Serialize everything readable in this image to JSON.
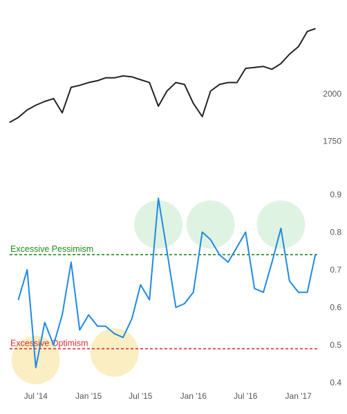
{
  "chart_data": [
    {
      "type": "line",
      "panel": "top",
      "x_dates": [
        "2014-04",
        "2014-05",
        "2014-06",
        "2014-07",
        "2014-08",
        "2014-09",
        "2014-10",
        "2014-11",
        "2014-12",
        "2015-01",
        "2015-02",
        "2015-03",
        "2015-04",
        "2015-05",
        "2015-06",
        "2015-07",
        "2015-08",
        "2015-09",
        "2015-10",
        "2015-11",
        "2015-12",
        "2016-01",
        "2016-02",
        "2016-03",
        "2016-04",
        "2016-05",
        "2016-06",
        "2016-07",
        "2016-08",
        "2016-09",
        "2016-10",
        "2016-11",
        "2016-12",
        "2017-01",
        "2017-02",
        "2017-03"
      ],
      "values": [
        1850,
        1875,
        1915,
        1940,
        1960,
        1975,
        1900,
        2035,
        2045,
        2060,
        2070,
        2085,
        2085,
        2095,
        2090,
        2075,
        2060,
        1935,
        2015,
        2060,
        2050,
        1950,
        1880,
        2015,
        2050,
        2060,
        2060,
        2135,
        2140,
        2145,
        2130,
        2160,
        2210,
        2250,
        2330,
        2345
      ],
      "yticks": [
        1750,
        2000
      ],
      "ylim": [
        1650,
        2460
      ],
      "color": "#222222"
    },
    {
      "type": "line",
      "panel": "bottom",
      "x_dates": [
        "2014-05",
        "2014-06",
        "2014-07",
        "2014-08",
        "2014-09",
        "2014-10",
        "2014-11",
        "2014-12",
        "2015-01",
        "2015-02",
        "2015-03",
        "2015-04",
        "2015-05",
        "2015-06",
        "2015-07",
        "2015-08",
        "2015-09",
        "2015-10",
        "2015-11",
        "2015-12",
        "2016-01",
        "2016-02",
        "2016-03",
        "2016-04",
        "2016-05",
        "2016-06",
        "2016-07",
        "2016-08",
        "2016-09",
        "2016-10",
        "2016-11",
        "2016-12",
        "2017-01",
        "2017-02",
        "2017-03"
      ],
      "values": [
        0.62,
        0.7,
        0.44,
        0.56,
        0.5,
        0.58,
        0.72,
        0.54,
        0.58,
        0.55,
        0.55,
        0.53,
        0.52,
        0.57,
        0.66,
        0.62,
        0.89,
        0.75,
        0.6,
        0.61,
        0.64,
        0.8,
        0.78,
        0.74,
        0.72,
        0.76,
        0.8,
        0.65,
        0.64,
        0.72,
        0.81,
        0.67,
        0.64,
        0.64,
        0.74
      ],
      "yticks": [
        0.4,
        0.5,
        0.6,
        0.7,
        0.8,
        0.9
      ],
      "ylim": [
        0.39,
        0.94
      ],
      "color": "#1e88e5"
    }
  ],
  "x_axis": {
    "tick_labels": [
      "Jul '14",
      "Jan '15",
      "Jul '15",
      "Jan '16",
      "Jul '16",
      "Jan '17"
    ],
    "tick_dates": [
      "2014-07",
      "2015-01",
      "2015-07",
      "2016-01",
      "2016-07",
      "2017-01"
    ]
  },
  "thresholds": [
    {
      "label": "Excessive Pessimism",
      "value": 0.74,
      "color": "#1a8c1a"
    },
    {
      "label": "Excessive Optimism",
      "value": 0.49,
      "color": "#d32f2f"
    }
  ],
  "highlights": [
    {
      "date": "2014-07",
      "value": 0.46,
      "color": "#fbeec2"
    },
    {
      "date": "2015-04",
      "value": 0.48,
      "color": "#fbeec2"
    },
    {
      "date": "2015-09",
      "value": 0.82,
      "color": "#dff3e3"
    },
    {
      "date": "2016-03",
      "value": 0.82,
      "color": "#dff3e3"
    },
    {
      "date": "2016-11",
      "value": 0.82,
      "color": "#dff3e3"
    }
  ]
}
